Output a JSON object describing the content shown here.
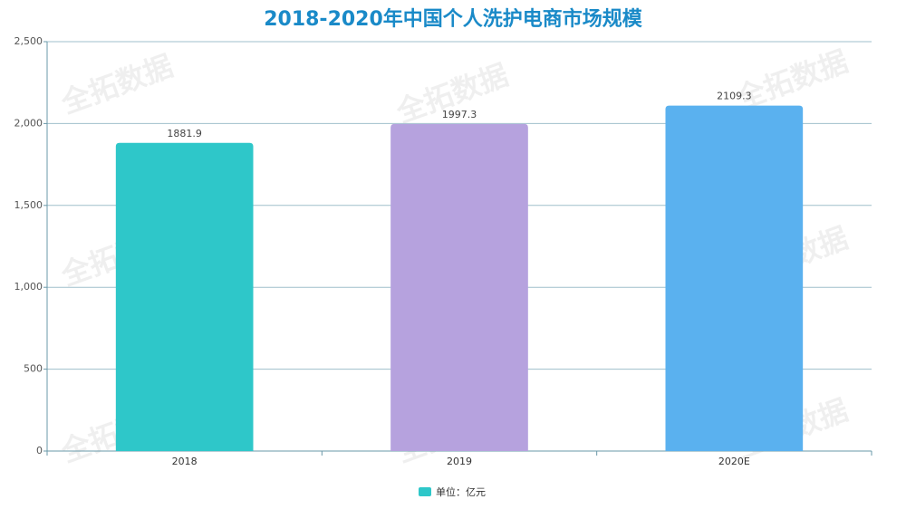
{
  "watermark": "全拓数据",
  "chart_data": {
    "type": "bar",
    "title": "2018-2020年中国个人洗护电商市场规模",
    "categories": [
      "2018",
      "2019",
      "2020E"
    ],
    "series": [
      {
        "name": "单位：亿元",
        "color": "#2ec7c9",
        "colors": [
          "#2ec7c9",
          "#b6a2de",
          "#5ab1ef"
        ],
        "values": [
          1881.9,
          1997.3,
          2109.3
        ]
      }
    ],
    "ylim": [
      0,
      2500
    ],
    "yticks": [
      0,
      500,
      {
        "value": 1000,
        "label": "1,000"
      },
      {
        "value": 1500,
        "label": "1,500"
      },
      {
        "value": 2000,
        "label": "2,000"
      },
      {
        "value": 2500,
        "label": "2,500"
      }
    ],
    "grid": true,
    "legend": "bottom"
  }
}
